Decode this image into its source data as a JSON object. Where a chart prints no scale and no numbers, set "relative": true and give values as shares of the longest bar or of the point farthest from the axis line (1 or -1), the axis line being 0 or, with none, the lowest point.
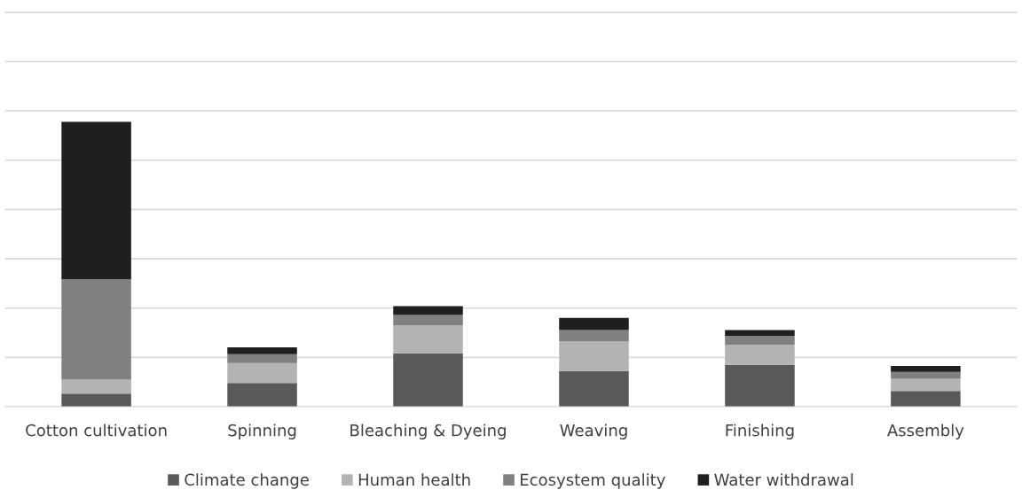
{
  "chart_data": {
    "type": "bar",
    "stacked": true,
    "relative": true,
    "grid": "y",
    "legend": "bottom",
    "categories": [
      "Cotton cultivation",
      "Spinning",
      "Bleaching & Dyeing",
      "Weaving",
      "Finishing",
      "Assembly"
    ],
    "series": [
      {
        "name": "Climate change",
        "color": "#595959",
        "values": [
          0.046,
          0.083,
          0.187,
          0.125,
          0.147,
          0.055
        ]
      },
      {
        "name": "Human health",
        "color": "#b3b3b3",
        "values": [
          0.049,
          0.07,
          0.098,
          0.104,
          0.07,
          0.043
        ]
      },
      {
        "name": "Ecosystem quality",
        "color": "#808080",
        "values": [
          0.352,
          0.031,
          0.037,
          0.04,
          0.031,
          0.024
        ]
      },
      {
        "name": "Water withdrawal",
        "color": "#1f1f1f",
        "values": [
          0.553,
          0.024,
          0.031,
          0.043,
          0.021,
          0.021
        ]
      }
    ]
  }
}
